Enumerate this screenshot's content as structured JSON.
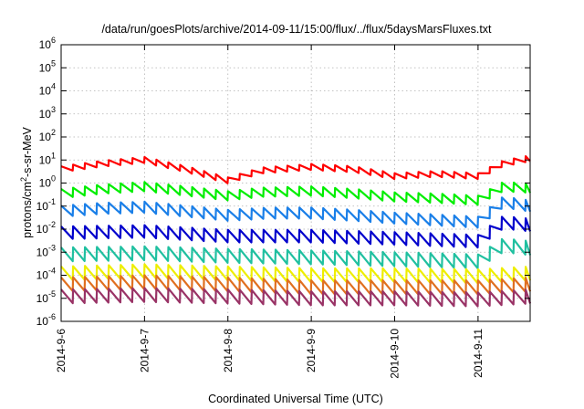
{
  "chart_data": {
    "type": "line",
    "title": "/data/run/goesPlots/archive/2014-09-11/15:00/flux/../flux/5daysMarsFluxes.txt",
    "xlabel": "Coordinated Universal Time (UTC)",
    "ylabel": {
      "prefix": "protons/cm",
      "sup": "2",
      "suffix": "-s-sr-MeV"
    },
    "x_range": [
      "2014-09-06T00:00",
      "2014-09-11T15:00"
    ],
    "x_ticks": [
      "2014-9-6",
      "2014-9-7",
      "2014-9-8",
      "2014-9-9",
      "2014-9-10",
      "2014-9-11"
    ],
    "y_scale": "log",
    "ylim": [
      1e-06,
      1000000.0
    ],
    "y_ticks": [
      {
        "base": "10",
        "exp": "-6"
      },
      {
        "base": "10",
        "exp": "-5"
      },
      {
        "base": "10",
        "exp": "-4"
      },
      {
        "base": "10",
        "exp": "-3"
      },
      {
        "base": "10",
        "exp": "-2"
      },
      {
        "base": "10",
        "exp": "-1"
      },
      {
        "base": "10",
        "exp": "0"
      },
      {
        "base": "10",
        "exp": "1"
      },
      {
        "base": "10",
        "exp": "2"
      },
      {
        "base": "10",
        "exp": "3"
      },
      {
        "base": "10",
        "exp": "4"
      },
      {
        "base": "10",
        "exp": "5"
      },
      {
        "base": "10",
        "exp": "6"
      }
    ],
    "grid": true,
    "legend": "none",
    "sawtooth_periods_per_day": 7,
    "series": [
      {
        "color": "#ff0000",
        "baseline": [
          [
            0,
            4.0
          ],
          [
            0.5,
            7.0
          ],
          [
            1.0,
            10.0
          ],
          [
            1.5,
            4.0
          ],
          [
            2.0,
            1.3
          ],
          [
            2.4,
            3.5
          ],
          [
            3.0,
            5.0
          ],
          [
            3.5,
            4.0
          ],
          [
            4.0,
            2.0
          ],
          [
            4.5,
            2.5
          ],
          [
            5.0,
            2.0
          ],
          [
            5.3,
            7.0
          ],
          [
            5.63,
            12.0
          ]
        ],
        "amp": 1.8
      },
      {
        "color": "#00ee00",
        "baseline": [
          [
            0,
            0.35
          ],
          [
            0.5,
            0.55
          ],
          [
            1.0,
            0.7
          ],
          [
            1.5,
            0.45
          ],
          [
            2.0,
            0.28
          ],
          [
            2.4,
            0.4
          ],
          [
            3.0,
            0.45
          ],
          [
            3.5,
            0.35
          ],
          [
            4.0,
            0.25
          ],
          [
            4.5,
            0.22
          ],
          [
            5.0,
            0.18
          ],
          [
            5.3,
            0.7
          ],
          [
            5.63,
            0.6
          ]
        ],
        "amp": 2.5
      },
      {
        "color": "#1a7fe8",
        "baseline": [
          [
            0,
            0.06
          ],
          [
            0.5,
            0.08
          ],
          [
            1.0,
            0.09
          ],
          [
            1.5,
            0.06
          ],
          [
            2.0,
            0.04
          ],
          [
            2.5,
            0.05
          ],
          [
            3.0,
            0.05
          ],
          [
            3.5,
            0.04
          ],
          [
            4.0,
            0.03
          ],
          [
            4.5,
            0.025
          ],
          [
            5.0,
            0.02
          ],
          [
            5.3,
            0.15
          ],
          [
            5.63,
            0.1
          ]
        ],
        "amp": 3.0
      },
      {
        "color": "#0000cc",
        "baseline": [
          [
            0,
            0.007
          ],
          [
            1.0,
            0.008
          ],
          [
            2.0,
            0.005
          ],
          [
            3.0,
            0.005
          ],
          [
            4.0,
            0.004
          ],
          [
            5.0,
            0.003
          ],
          [
            5.3,
            0.02
          ],
          [
            5.63,
            0.015
          ]
        ],
        "amp": 3.5
      },
      {
        "color": "#20c0a0",
        "baseline": [
          [
            0,
            0.0008
          ],
          [
            1.0,
            0.0009
          ],
          [
            2.0,
            0.0007
          ],
          [
            3.0,
            0.0006
          ],
          [
            4.0,
            0.0005
          ],
          [
            5.0,
            0.0004
          ],
          [
            5.3,
            0.002
          ],
          [
            5.63,
            0.0015
          ]
        ],
        "amp": 4.0
      },
      {
        "color": "#eeee00",
        "baseline": [
          [
            0,
            0.00012
          ],
          [
            1.0,
            0.00015
          ],
          [
            2.0,
            0.00012
          ],
          [
            3.0,
            0.0001
          ],
          [
            4.0,
            0.0001
          ],
          [
            5.0,
            9e-05
          ],
          [
            5.63,
            0.00012
          ]
        ],
        "amp": 4.0
      },
      {
        "color": "#e07020",
        "baseline": [
          [
            0,
            4e-05
          ],
          [
            1.0,
            5e-05
          ],
          [
            2.0,
            4e-05
          ],
          [
            3.0,
            3e-05
          ],
          [
            4.0,
            3e-05
          ],
          [
            5.0,
            3e-05
          ],
          [
            5.63,
            4e-05
          ]
        ],
        "amp": 4.0
      },
      {
        "color": "#993366",
        "baseline": [
          [
            0,
            1.2e-05
          ],
          [
            1.0,
            1.4e-05
          ],
          [
            2.0,
            1.2e-05
          ],
          [
            3.0,
            1e-05
          ],
          [
            4.0,
            1e-05
          ],
          [
            5.0,
            9e-06
          ],
          [
            5.63,
            1.2e-05
          ]
        ],
        "amp": 4.0
      }
    ]
  }
}
